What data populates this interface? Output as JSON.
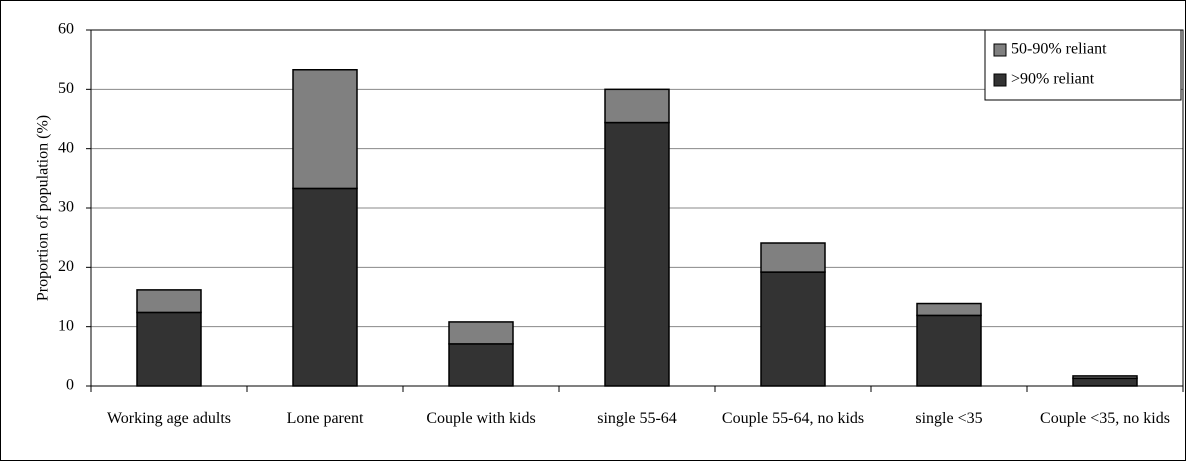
{
  "chart_data": {
    "type": "stacked_bar",
    "y_label": "Proportion of population (%)",
    "categories": [
      "Working age adults",
      "Lone parent",
      "Couple with kids",
      "single 55-64",
      "Couple 55-64, no kids",
      "single <35",
      "Couple <35, no kids"
    ],
    "series": [
      {
        "name": ">90% reliant",
        "color": "#333333",
        "values": [
          12.4,
          33.3,
          7.1,
          44.4,
          19.2,
          11.9,
          1.3
        ]
      },
      {
        "name": "50-90% reliant",
        "color": "#808080",
        "values": [
          3.8,
          20.0,
          3.7,
          5.6,
          4.9,
          2.0,
          0.4
        ]
      }
    ],
    "ylim": [
      0,
      60
    ],
    "yticks": [
      0,
      10,
      20,
      30,
      40,
      50,
      60
    ],
    "grid": true,
    "legend": "top-right"
  }
}
